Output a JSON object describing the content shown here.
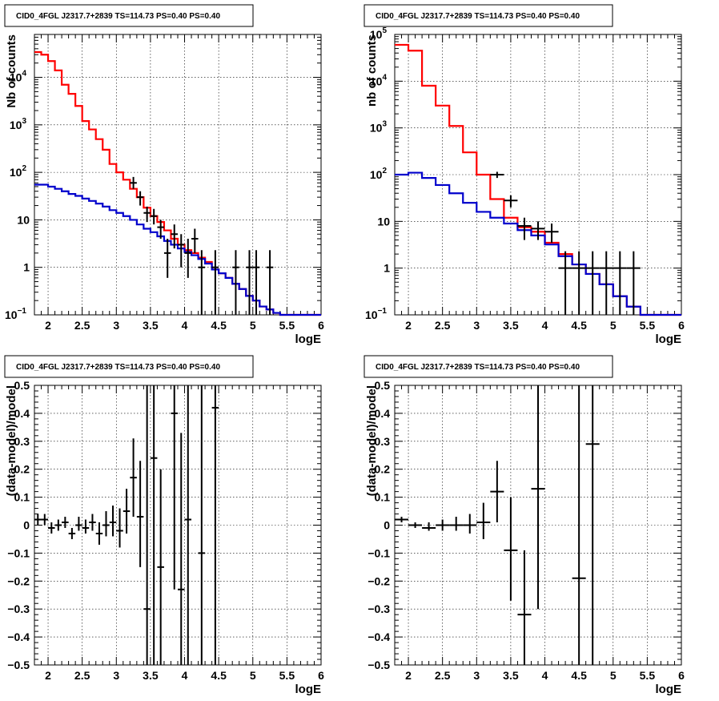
{
  "colors": {
    "model_total": "#ff0000",
    "model_background": "#0000cc",
    "data": "#000000"
  },
  "panels": [
    {
      "title": "CID0_4FGL J2317.7+2839 TS=114.73 PS=0.40 PS=0.40",
      "xlabel": "logE",
      "ylabel": "Nb of counts",
      "chart_data": {
        "type": "line",
        "y_scale": "log",
        "xlim": [
          1.8,
          6.0
        ],
        "ylim": [
          0.1,
          80000
        ],
        "grid": true,
        "x_ticks": [
          "2",
          "2.5",
          "3",
          "3.5",
          "4",
          "4.5",
          "5",
          "5.5",
          "6"
        ],
        "y_ticks": [
          {
            "v": 0.1,
            "label": "10",
            "exp": "−1"
          },
          {
            "v": 1,
            "label": "1"
          },
          {
            "v": 10,
            "label": "10"
          },
          {
            "v": 100,
            "label": "10",
            "exp": "2"
          },
          {
            "v": 1000,
            "label": "10",
            "exp": "3"
          },
          {
            "v": 10000,
            "label": "10",
            "exp": "4"
          }
        ],
        "bin_edges": [
          1.8,
          1.9,
          2.0,
          2.1,
          2.2,
          2.3,
          2.4,
          2.5,
          2.6,
          2.7,
          2.8,
          2.9,
          3.0,
          3.1,
          3.2,
          3.3,
          3.4,
          3.5,
          3.6,
          3.7,
          3.8,
          3.9,
          4.0,
          4.1,
          4.2,
          4.3,
          4.4,
          4.5,
          4.6,
          4.7,
          4.8,
          4.9,
          5.0,
          5.1,
          5.2,
          5.3,
          5.4,
          5.5,
          5.6,
          5.7,
          5.8,
          5.9,
          6.0
        ],
        "series": [
          {
            "role": "model_total",
            "values": [
              34000,
              30000,
              22000,
              14000,
              7000,
              4500,
              2500,
              1200,
              800,
              500,
              300,
              150,
              100,
              70,
              45,
              30,
              18,
              12,
              9,
              6,
              4,
              3,
              2.3,
              2,
              1.6,
              1.3,
              0.9,
              0.75,
              0.6,
              0.45,
              0.35,
              0.25,
              0.2,
              0.15,
              0.13,
              0.11,
              0.1,
              0.1,
              0.1,
              0.1,
              0.1,
              0.1
            ]
          },
          {
            "role": "model_background",
            "values": [
              55,
              55,
              50,
              45,
              40,
              35,
              32,
              28,
              25,
              22,
              19,
              16,
              14,
              12,
              10,
              8,
              6.5,
              5.5,
              4.5,
              3.6,
              3.0,
              2.5,
              2.1,
              1.8,
              1.5,
              1.2,
              0.9,
              0.75,
              0.6,
              0.45,
              0.35,
              0.25,
              0.2,
              0.15,
              0.13,
              0.11,
              0.1,
              0.1,
              0.1,
              0.1,
              0.1,
              0.1
            ]
          }
        ],
        "data_points": [
          {
            "x": 3.25,
            "xerr": 0.05,
            "y": 60,
            "lo": 45,
            "hi": 80
          },
          {
            "x": 3.35,
            "xerr": 0.05,
            "y": 30,
            "lo": 20,
            "hi": 40
          },
          {
            "x": 3.45,
            "xerr": 0.05,
            "y": 14,
            "lo": 9,
            "hi": 19
          },
          {
            "x": 3.55,
            "xerr": 0.05,
            "y": 12,
            "lo": 8,
            "hi": 17
          },
          {
            "x": 3.65,
            "xerr": 0.05,
            "y": 7,
            "lo": 4,
            "hi": 10
          },
          {
            "x": 3.75,
            "xerr": 0.05,
            "y": 2,
            "lo": 0.6,
            "hi": 4
          },
          {
            "x": 3.85,
            "xerr": 0.05,
            "y": 5,
            "lo": 2.5,
            "hi": 8
          },
          {
            "x": 3.95,
            "xerr": 0.05,
            "y": 3,
            "lo": 1,
            "hi": 5
          },
          {
            "x": 4.05,
            "xerr": 0.05,
            "y": 2,
            "lo": 0.6,
            "hi": 4
          },
          {
            "x": 4.15,
            "xerr": 0.05,
            "y": 4,
            "lo": 2,
            "hi": 6.5
          },
          {
            "x": 4.25,
            "xerr": 0.05,
            "y": 1,
            "lo": 0.1,
            "hi": 2.3
          },
          {
            "x": 4.45,
            "xerr": 0.05,
            "y": 1,
            "lo": 0.1,
            "hi": 2.3
          },
          {
            "x": 4.75,
            "xerr": 0.05,
            "y": 1,
            "lo": 0.1,
            "hi": 2.3
          },
          {
            "x": 4.95,
            "xerr": 0.05,
            "y": 1,
            "lo": 0.1,
            "hi": 2.3
          },
          {
            "x": 5.05,
            "xerr": 0.05,
            "y": 1,
            "lo": 0.1,
            "hi": 2.3
          },
          {
            "x": 5.25,
            "xerr": 0.05,
            "y": 1,
            "lo": 0.1,
            "hi": 2.3
          }
        ]
      }
    },
    {
      "title": "CID0_4FGL J2317.7+2839 TS=114.73 PS=0.40 PS=0.40",
      "xlabel": "logE",
      "ylabel": "nb of counts",
      "chart_data": {
        "type": "line",
        "y_scale": "log",
        "xlim": [
          1.8,
          6.0
        ],
        "ylim": [
          0.1,
          100000
        ],
        "grid": true,
        "x_ticks": [
          "2",
          "2.5",
          "3",
          "3.5",
          "4",
          "4.5",
          "5",
          "5.5",
          "6"
        ],
        "y_ticks": [
          {
            "v": 0.1,
            "label": "10",
            "exp": "−1"
          },
          {
            "v": 1,
            "label": "1"
          },
          {
            "v": 10,
            "label": "10"
          },
          {
            "v": 100,
            "label": "10",
            "exp": "2"
          },
          {
            "v": 1000,
            "label": "10",
            "exp": "3"
          },
          {
            "v": 10000,
            "label": "10",
            "exp": "4"
          },
          {
            "v": 100000,
            "label": "10",
            "exp": "5"
          }
        ],
        "bin_edges": [
          1.8,
          2.0,
          2.2,
          2.4,
          2.6,
          2.8,
          3.0,
          3.2,
          3.4,
          3.6,
          3.8,
          4.0,
          4.2,
          4.4,
          4.6,
          4.8,
          5.0,
          5.2,
          5.4,
          5.6,
          5.8,
          6.0
        ],
        "series": [
          {
            "role": "model_total",
            "values": [
              60000,
              45000,
              8000,
              3000,
              1100,
              300,
              100,
              30,
              12,
              7.5,
              6,
              3.5,
              2,
              1.2,
              0.75,
              0.45,
              0.25,
              0.15,
              0.1,
              0.1,
              0.1
            ]
          },
          {
            "role": "model_background",
            "values": [
              100,
              110,
              85,
              60,
              40,
              25,
              16,
              12,
              9,
              6.5,
              5,
              3.2,
              1.8,
              1.2,
              0.75,
              0.45,
              0.25,
              0.15,
              0.1,
              0.1,
              0.1
            ]
          }
        ],
        "data_points": [
          {
            "x": 3.3,
            "xerr": 0.1,
            "y": 100,
            "lo": 85,
            "hi": 115
          },
          {
            "x": 3.5,
            "xerr": 0.1,
            "y": 28,
            "lo": 20,
            "hi": 36
          },
          {
            "x": 3.7,
            "xerr": 0.1,
            "y": 8,
            "lo": 4,
            "hi": 12
          },
          {
            "x": 3.9,
            "xerr": 0.1,
            "y": 7,
            "lo": 4,
            "hi": 10
          },
          {
            "x": 4.1,
            "xerr": 0.1,
            "y": 6,
            "lo": 3.5,
            "hi": 9
          },
          {
            "x": 4.3,
            "xerr": 0.1,
            "y": 1,
            "lo": 0.1,
            "hi": 2.3
          },
          {
            "x": 4.5,
            "xerr": 0.1,
            "y": 1,
            "lo": 0.1,
            "hi": 2.3
          },
          {
            "x": 4.7,
            "xerr": 0.1,
            "y": 1,
            "lo": 0.1,
            "hi": 2.3
          },
          {
            "x": 4.9,
            "xerr": 0.1,
            "y": 1,
            "lo": 0.1,
            "hi": 2.3
          },
          {
            "x": 5.1,
            "xerr": 0.1,
            "y": 1,
            "lo": 0.1,
            "hi": 2.3
          },
          {
            "x": 5.3,
            "xerr": 0.1,
            "y": 1,
            "lo": 0.1,
            "hi": 2.3
          }
        ]
      }
    },
    {
      "title": "CID0_4FGL J2317.7+2839 TS=114.73 PS=0.40 PS=0.40",
      "xlabel": "logE",
      "ylabel": "(data-model)/model",
      "chart_data": {
        "type": "scatter",
        "y_scale": "linear",
        "xlim": [
          1.8,
          6.0
        ],
        "ylim": [
          -0.5,
          0.5
        ],
        "grid": true,
        "x_ticks": [
          "2",
          "2.5",
          "3",
          "3.5",
          "4",
          "4.5",
          "5",
          "5.5",
          "6"
        ],
        "y_ticks": [
          {
            "v": -0.5,
            "label": "−0.5"
          },
          {
            "v": -0.4,
            "label": "−0.4"
          },
          {
            "v": -0.3,
            "label": "−0.3"
          },
          {
            "v": -0.2,
            "label": "−0.2"
          },
          {
            "v": -0.1,
            "label": "−0.1"
          },
          {
            "v": 0,
            "label": "0"
          },
          {
            "v": 0.1,
            "label": "0.1"
          },
          {
            "v": 0.2,
            "label": "0.2"
          },
          {
            "v": 0.3,
            "label": "0.3"
          },
          {
            "v": 0.4,
            "label": "0.4"
          },
          {
            "v": 0.5,
            "label": "0.5"
          }
        ],
        "data_points": [
          {
            "x": 1.85,
            "xerr": 0.05,
            "y": 0.02,
            "lo": 0.0,
            "hi": 0.04
          },
          {
            "x": 1.95,
            "xerr": 0.05,
            "y": 0.02,
            "lo": 0.0,
            "hi": 0.04
          },
          {
            "x": 2.05,
            "xerr": 0.05,
            "y": -0.01,
            "lo": -0.03,
            "hi": 0.01
          },
          {
            "x": 2.15,
            "xerr": 0.05,
            "y": 0.0,
            "lo": -0.02,
            "hi": 0.02
          },
          {
            "x": 2.25,
            "xerr": 0.05,
            "y": 0.01,
            "lo": -0.01,
            "hi": 0.03
          },
          {
            "x": 2.35,
            "xerr": 0.05,
            "y": -0.03,
            "lo": -0.05,
            "hi": -0.01
          },
          {
            "x": 2.45,
            "xerr": 0.05,
            "y": 0.0,
            "lo": -0.02,
            "hi": 0.03
          },
          {
            "x": 2.55,
            "xerr": 0.05,
            "y": -0.01,
            "lo": -0.03,
            "hi": 0.02
          },
          {
            "x": 2.65,
            "xerr": 0.05,
            "y": 0.01,
            "lo": -0.02,
            "hi": 0.04
          },
          {
            "x": 2.75,
            "xerr": 0.05,
            "y": -0.03,
            "lo": -0.07,
            "hi": 0.01
          },
          {
            "x": 2.85,
            "xerr": 0.05,
            "y": 0.0,
            "lo": -0.04,
            "hi": 0.05
          },
          {
            "x": 2.95,
            "xerr": 0.05,
            "y": 0.01,
            "lo": -0.04,
            "hi": 0.07
          },
          {
            "x": 3.05,
            "xerr": 0.05,
            "y": -0.02,
            "lo": -0.08,
            "hi": 0.06
          },
          {
            "x": 3.15,
            "xerr": 0.05,
            "y": 0.05,
            "lo": -0.03,
            "hi": 0.13
          },
          {
            "x": 3.25,
            "xerr": 0.05,
            "y": 0.17,
            "lo": 0.03,
            "hi": 0.31
          },
          {
            "x": 3.35,
            "xerr": 0.05,
            "y": 0.03,
            "lo": -0.15,
            "hi": 0.23
          },
          {
            "x": 3.45,
            "xerr": 0.05,
            "y": -0.3,
            "lo": -0.5,
            "hi": 0.5
          },
          {
            "x": 3.55,
            "xerr": 0.05,
            "y": 0.24,
            "lo": -0.5,
            "hi": 0.5
          },
          {
            "x": 3.65,
            "xerr": 0.05,
            "y": -0.15,
            "lo": -0.5,
            "hi": 0.2
          },
          {
            "x": 3.85,
            "xerr": 0.05,
            "y": 0.4,
            "lo": -0.23,
            "hi": 0.5
          },
          {
            "x": 3.95,
            "xerr": 0.05,
            "y": -0.23,
            "lo": -0.5,
            "hi": 0.33
          },
          {
            "x": 4.05,
            "xerr": 0.05,
            "y": 0.02,
            "lo": -0.5,
            "hi": 0.5
          },
          {
            "x": 4.25,
            "xerr": 0.05,
            "y": -0.1,
            "lo": -0.5,
            "hi": 0.5
          },
          {
            "x": 4.45,
            "xerr": 0.05,
            "y": 0.42,
            "lo": -0.5,
            "hi": 0.5
          }
        ]
      }
    },
    {
      "title": "CID0_4FGL J2317.7+2839 TS=114.73 PS=0.40 PS=0.40",
      "xlabel": "logE",
      "ylabel": "(data-model)/model",
      "chart_data": {
        "type": "scatter",
        "y_scale": "linear",
        "xlim": [
          1.8,
          6.0
        ],
        "ylim": [
          -0.5,
          0.5
        ],
        "grid": true,
        "x_ticks": [
          "2",
          "2.5",
          "3",
          "3.5",
          "4",
          "4.5",
          "5",
          "5.5",
          "6"
        ],
        "y_ticks": [
          {
            "v": -0.5,
            "label": "−0.5"
          },
          {
            "v": -0.4,
            "label": "−0.4"
          },
          {
            "v": -0.3,
            "label": "−0.3"
          },
          {
            "v": -0.2,
            "label": "−0.2"
          },
          {
            "v": -0.1,
            "label": "−0.1"
          },
          {
            "v": 0,
            "label": "0"
          },
          {
            "v": 0.1,
            "label": "0.1"
          },
          {
            "v": 0.2,
            "label": "0.2"
          },
          {
            "v": 0.3,
            "label": "0.3"
          },
          {
            "v": 0.4,
            "label": "0.4"
          },
          {
            "v": 0.5,
            "label": "0.5"
          }
        ],
        "data_points": [
          {
            "x": 1.9,
            "xerr": 0.1,
            "y": 0.02,
            "lo": 0.01,
            "hi": 0.03
          },
          {
            "x": 2.1,
            "xerr": 0.1,
            "y": 0.0,
            "lo": -0.01,
            "hi": 0.01
          },
          {
            "x": 2.3,
            "xerr": 0.1,
            "y": -0.01,
            "lo": -0.02,
            "hi": 0.01
          },
          {
            "x": 2.5,
            "xerr": 0.1,
            "y": 0.0,
            "lo": -0.02,
            "hi": 0.02
          },
          {
            "x": 2.7,
            "xerr": 0.1,
            "y": 0.0,
            "lo": -0.02,
            "hi": 0.03
          },
          {
            "x": 2.9,
            "xerr": 0.1,
            "y": 0.0,
            "lo": -0.03,
            "hi": 0.04
          },
          {
            "x": 3.1,
            "xerr": 0.1,
            "y": 0.01,
            "lo": -0.05,
            "hi": 0.08
          },
          {
            "x": 3.3,
            "xerr": 0.1,
            "y": 0.12,
            "lo": 0.01,
            "hi": 0.23
          },
          {
            "x": 3.5,
            "xerr": 0.1,
            "y": -0.09,
            "lo": -0.27,
            "hi": 0.1
          },
          {
            "x": 3.7,
            "xerr": 0.1,
            "y": -0.32,
            "lo": -0.5,
            "hi": -0.09
          },
          {
            "x": 3.9,
            "xerr": 0.1,
            "y": 0.13,
            "lo": -0.3,
            "hi": 0.5
          },
          {
            "x": 4.5,
            "xerr": 0.1,
            "y": -0.19,
            "lo": -0.5,
            "hi": 0.5
          },
          {
            "x": 4.7,
            "xerr": 0.1,
            "y": 0.29,
            "lo": -0.5,
            "hi": 0.5
          }
        ]
      }
    }
  ]
}
